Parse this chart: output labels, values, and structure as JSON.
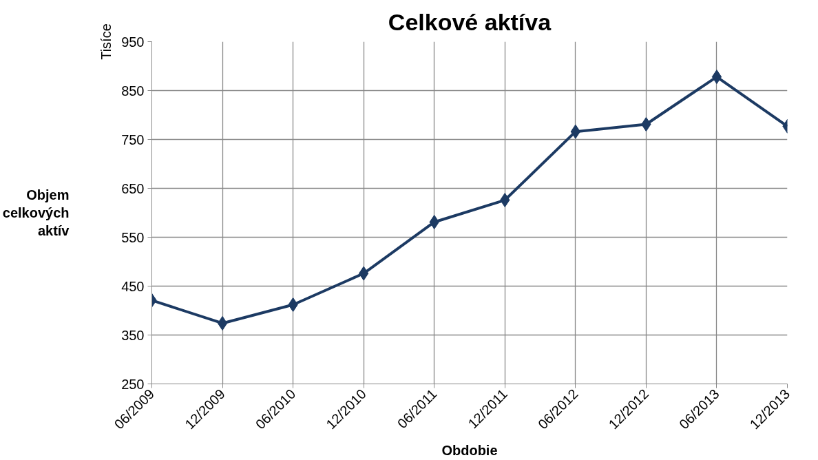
{
  "chart_data": {
    "type": "line",
    "title": "Celkové aktíva",
    "xlabel": "Obdobie",
    "ylabel": "Objem celkových aktív",
    "annotations": [
      "Tisíce"
    ],
    "categories": [
      "06/2009",
      "12/2009",
      "06/2010",
      "12/2010",
      "06/2011",
      "12/2011",
      "06/2012",
      "12/2012",
      "06/2013",
      "12/2013"
    ],
    "series": [
      {
        "color": "#1c3a63",
        "values": [
          421,
          374,
          412,
          476,
          581,
          626,
          766,
          781,
          878,
          777
        ]
      }
    ],
    "ylim": [
      250,
      950
    ],
    "yticks": [
      250,
      350,
      450,
      550,
      650,
      750,
      850,
      950
    ],
    "grid": true,
    "marker": "diamond",
    "line_style": "solid"
  }
}
